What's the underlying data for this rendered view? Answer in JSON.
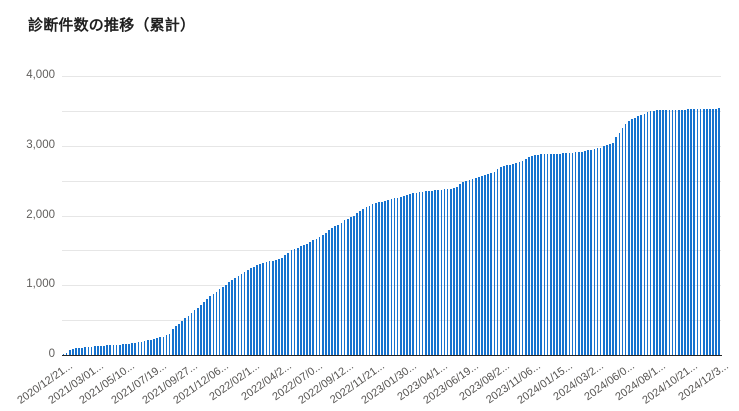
{
  "title": "診断件数の推移（累計）",
  "colors": {
    "bar": "#1673cf",
    "title": "#1f1f1f",
    "axis_label": "#605e5c",
    "gridline": "#e6e6e6",
    "axis_line": "#252423",
    "background": "#ffffff"
  },
  "chart_data": {
    "type": "bar",
    "title": "診断件数の推移（累計）",
    "xlabel": "",
    "ylabel": "",
    "ylim": [
      0,
      4000
    ],
    "gridline_interval": 500,
    "grid": "horizontal",
    "legend": "none",
    "x_unit": "week",
    "x_tick_step": 10,
    "x_tick_labels": [
      "2020/12/21...",
      "2021/03/01...",
      "2021/05/10...",
      "2021/07/19...",
      "2021/09/27...",
      "2021/12/06...",
      "2022/02/1...",
      "2022/04/2...",
      "2022/07/0...",
      "2022/09/12...",
      "2022/11/21...",
      "2023/01/30...",
      "2023/04/1...",
      "2023/06/19...",
      "2023/08/2...",
      "2023/11/06...",
      "2024/01/15...",
      "2024/03/2...",
      "2024/06/0...",
      "2024/08/1...",
      "2024/10/21...",
      "2024/12/3..."
    ],
    "y_ticks": [
      {
        "value": 0,
        "label": "0"
      },
      {
        "value": 1000,
        "label": "1,000"
      },
      {
        "value": 2000,
        "label": "2,000"
      },
      {
        "value": 3000,
        "label": "3,000"
      },
      {
        "value": 4000,
        "label": "4,000"
      }
    ],
    "values": [
      10,
      30,
      70,
      82,
      95,
      101,
      106,
      111,
      116,
      120,
      125,
      130,
      134,
      136,
      139,
      141,
      143,
      145,
      148,
      152,
      157,
      162,
      168,
      175,
      183,
      192,
      201,
      211,
      221,
      230,
      240,
      252,
      265,
      282,
      305,
      370,
      410,
      450,
      490,
      525,
      560,
      600,
      640,
      680,
      720,
      760,
      800,
      840,
      875,
      910,
      940,
      975,
      1010,
      1040,
      1070,
      1100,
      1130,
      1160,
      1190,
      1220,
      1248,
      1262,
      1286,
      1300,
      1319,
      1333,
      1343,
      1352,
      1367,
      1381,
      1390,
      1429,
      1467,
      1500,
      1524,
      1538,
      1557,
      1571,
      1595,
      1619,
      1643,
      1667,
      1690,
      1724,
      1752,
      1786,
      1819,
      1843,
      1867,
      1895,
      1929,
      1952,
      1976,
      2000,
      2030,
      2060,
      2090,
      2115,
      2140,
      2160,
      2180,
      2190,
      2200,
      2212,
      2226,
      2236,
      2245,
      2255,
      2269,
      2284,
      2300,
      2308,
      2318,
      2327,
      2337,
      2342,
      2346,
      2351,
      2356,
      2361,
      2365,
      2370,
      2375,
      2380,
      2385,
      2390,
      2410,
      2450,
      2475,
      2500,
      2515,
      2530,
      2540,
      2555,
      2565,
      2578,
      2590,
      2610,
      2625,
      2660,
      2690,
      2710,
      2722,
      2731,
      2740,
      2750,
      2765,
      2785,
      2815,
      2840,
      2860,
      2868,
      2873,
      2877,
      2877,
      2880,
      2882,
      2885,
      2887,
      2887,
      2890,
      2896,
      2896,
      2901,
      2905,
      2910,
      2915,
      2924,
      2934,
      2943,
      2955,
      2965,
      2975,
      2990,
      3005,
      3019,
      3040,
      3128,
      3176,
      3248,
      3305,
      3352,
      3381,
      3405,
      3429,
      3448,
      3462,
      3486,
      3500,
      3505,
      3510,
      3513,
      3515,
      3515,
      3516,
      3517,
      3517,
      3518,
      3518,
      3519,
      3520,
      3521,
      3522,
      3523,
      3525,
      3526,
      3528,
      3530,
      3531,
      3533,
      3535
    ]
  }
}
